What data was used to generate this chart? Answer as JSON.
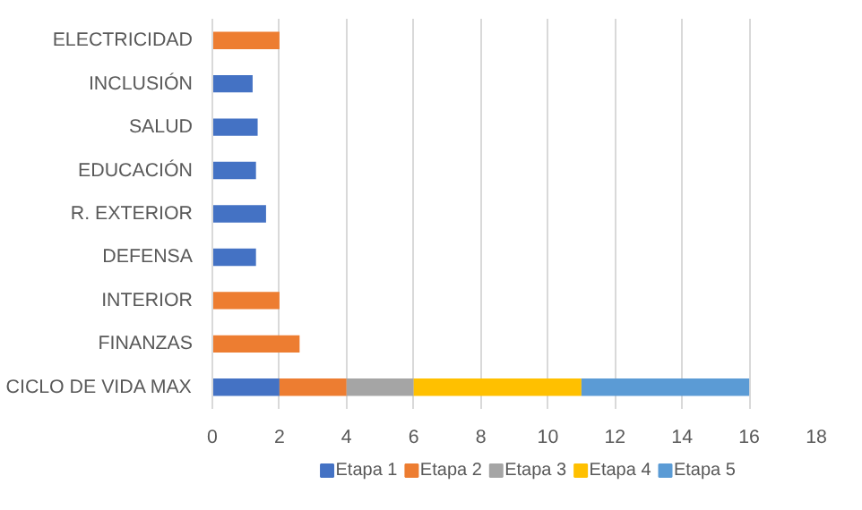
{
  "chart_data": {
    "type": "bar",
    "orientation": "horizontal",
    "stacked": true,
    "categories": [
      "ELECTRICIDAD",
      "INCLUSIÓN",
      "SALUD",
      "EDUCACIÓN",
      "R. EXTERIOR",
      "DEFENSA",
      "INTERIOR",
      "FINANZAS",
      "CICLO DE VIDA MAX"
    ],
    "series": [
      {
        "name": "Etapa 1",
        "color": "#4472c4",
        "values": [
          null,
          1.2,
          1.35,
          1.3,
          1.6,
          1.3,
          null,
          null,
          2
        ]
      },
      {
        "name": "Etapa 2",
        "color": "#ed7d31",
        "values": [
          2,
          null,
          null,
          null,
          null,
          null,
          2,
          2.6,
          2
        ]
      },
      {
        "name": "Etapa 3",
        "color": "#a5a5a5",
        "values": [
          null,
          null,
          null,
          null,
          null,
          null,
          null,
          null,
          2
        ]
      },
      {
        "name": "Etapa 4",
        "color": "#ffc000",
        "values": [
          null,
          null,
          null,
          null,
          null,
          null,
          null,
          null,
          5
        ]
      },
      {
        "name": "Etapa 5",
        "color": "#5b9bd5",
        "values": [
          null,
          null,
          null,
          null,
          null,
          null,
          null,
          null,
          5
        ]
      }
    ],
    "xlim": [
      0,
      18
    ],
    "xticks": [
      0,
      2,
      4,
      6,
      8,
      10,
      12,
      14,
      16,
      18
    ],
    "grid": "x",
    "legend": "bottom"
  }
}
